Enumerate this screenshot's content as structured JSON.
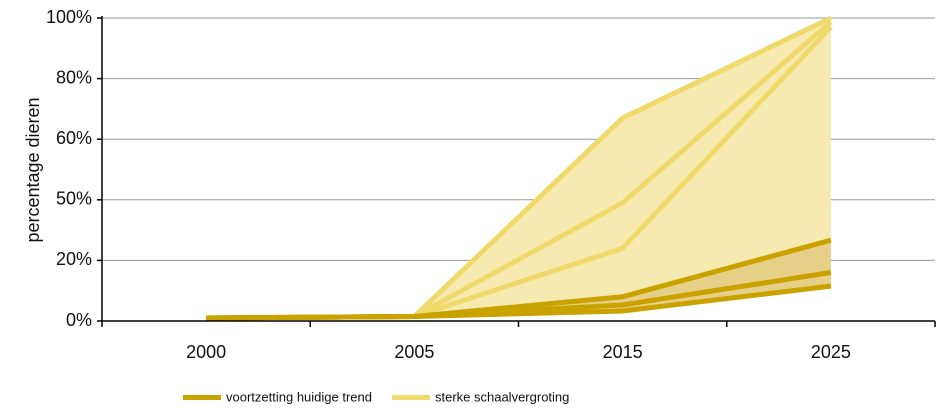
{
  "chart_data": {
    "type": "line-band",
    "y_label": "percentage dieren",
    "categories": [
      "2000",
      "2005",
      "2015",
      "2025"
    ],
    "ylim": [
      0,
      100
    ],
    "yticks": [
      {
        "value": 0,
        "label": "0%"
      },
      {
        "value": 20,
        "label": "20%"
      },
      {
        "value": 50,
        "label": "50%"
      },
      {
        "value": 60,
        "label": "60%"
      },
      {
        "value": 80,
        "label": "80%"
      },
      {
        "value": 100,
        "label": "100%"
      }
    ],
    "grid": true,
    "groups": [
      {
        "name": "voortzetting huidige trend",
        "color": "#c9a200",
        "fill": "#e6cf86",
        "series": [
          {
            "values": [
              1,
              1.5,
              8,
              30
            ]
          },
          {
            "values": [
              1,
              1.5,
              5.3,
              16
            ]
          },
          {
            "values": [
              1,
              1.5,
              3.3,
              11.5
            ]
          }
        ]
      },
      {
        "name": "sterke schaalvergroting",
        "color": "#efd96a",
        "fill": "#f7eab0",
        "series": [
          {
            "values": [
              1,
              1.5,
              67,
              100
            ]
          },
          {
            "values": [
              1,
              1.5,
              48.5,
              98.7
            ]
          },
          {
            "values": [
              1,
              1.5,
              26,
              97
            ]
          }
        ]
      }
    ]
  }
}
